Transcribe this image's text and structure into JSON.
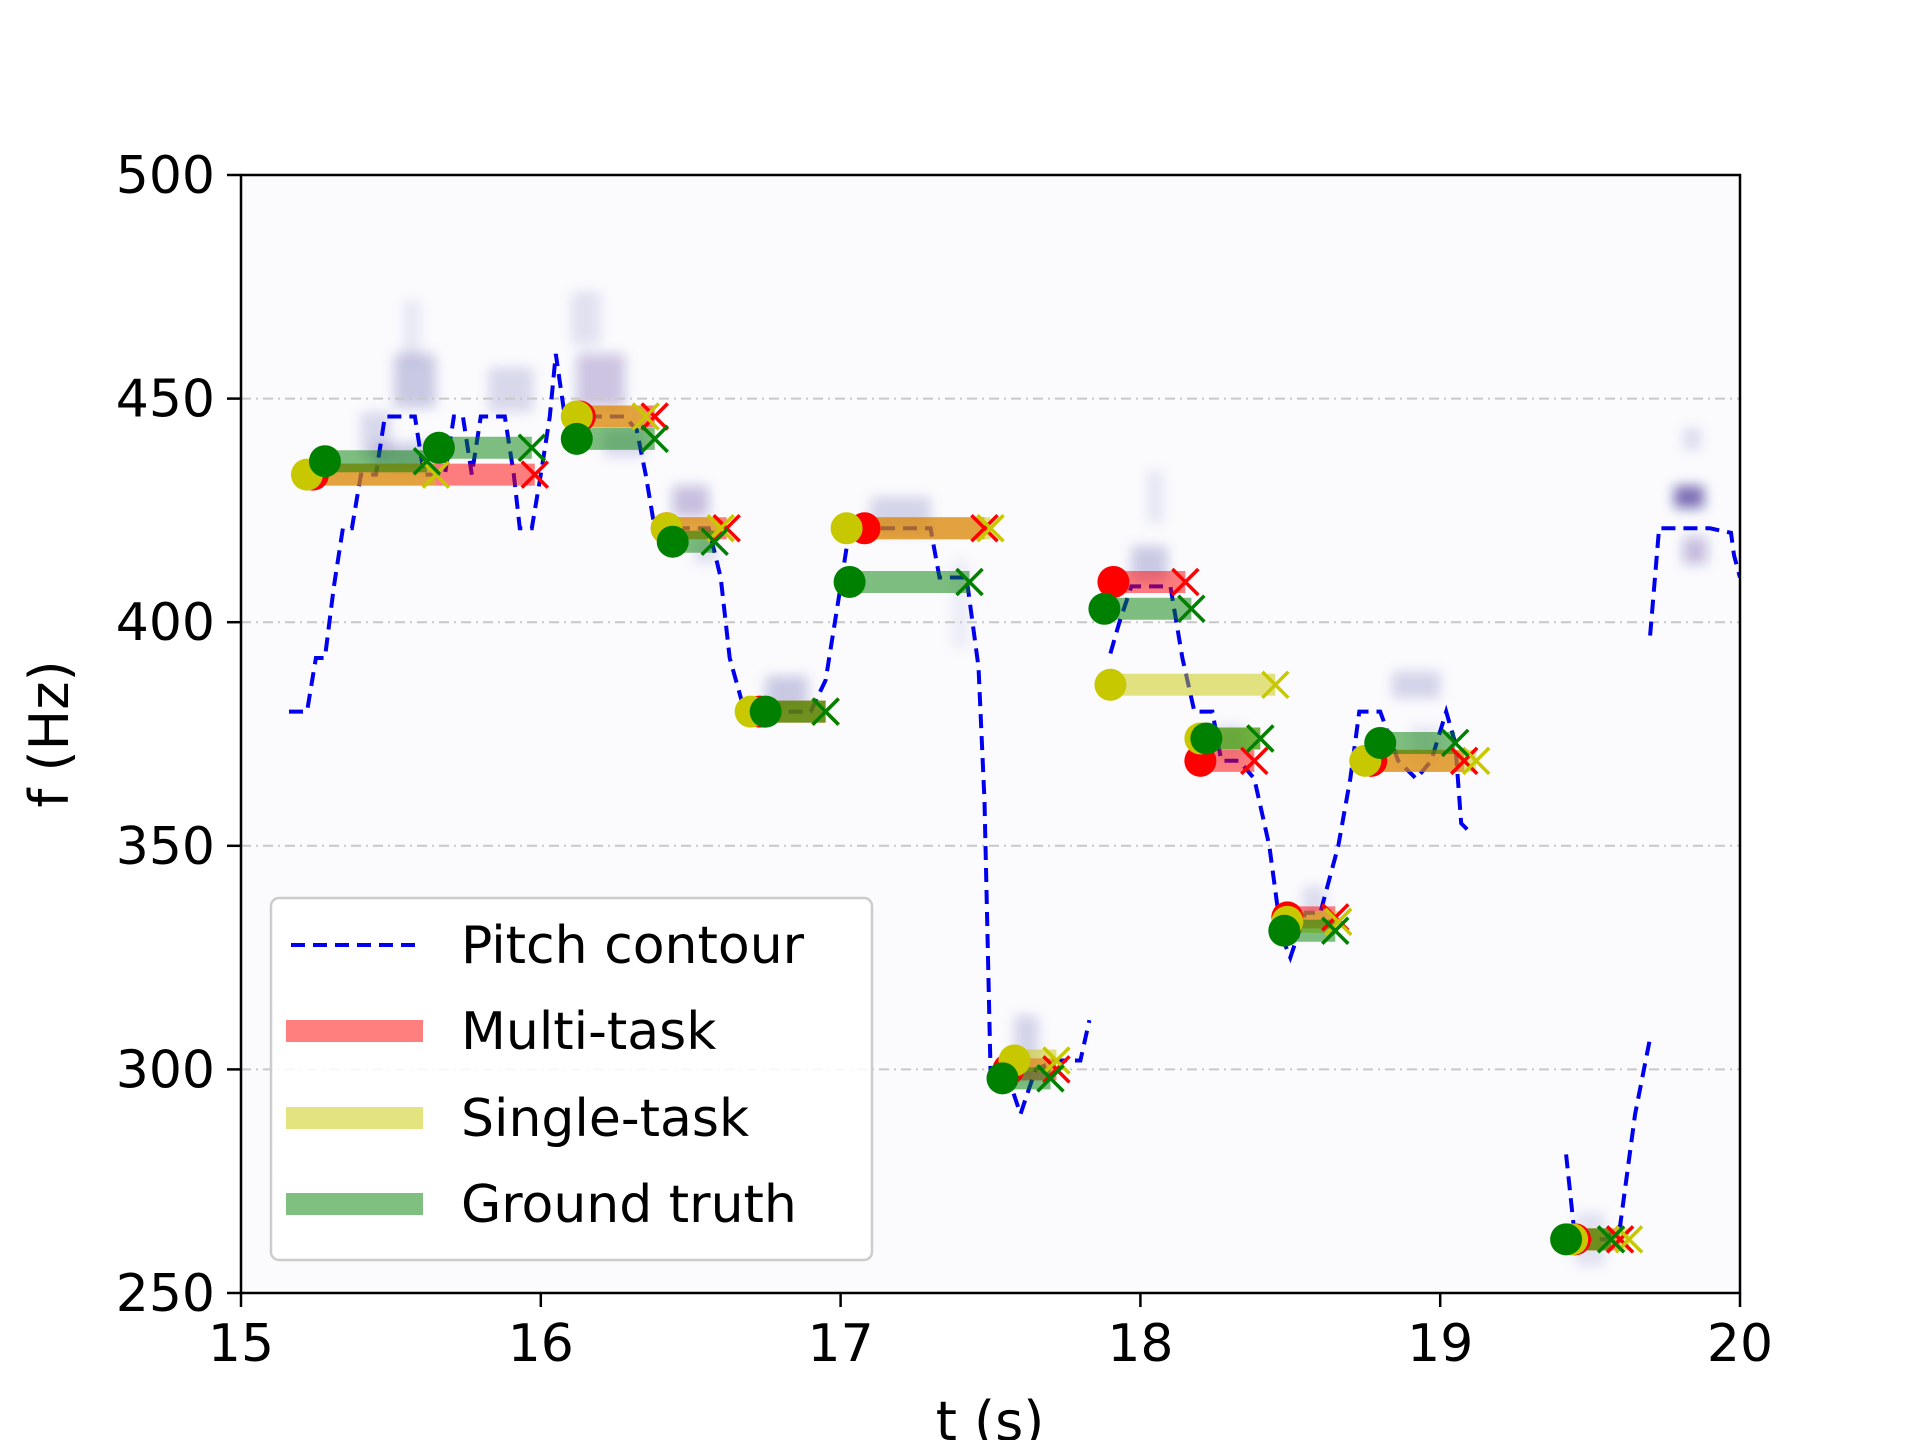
{
  "chart_data": {
    "type": "line",
    "title": "",
    "xlabel": "t (s)",
    "ylabel": "f (Hz)",
    "xlim": [
      15,
      20
    ],
    "ylim": [
      250,
      500
    ],
    "xticks": [
      15,
      16,
      17,
      18,
      19,
      20
    ],
    "yticks": [
      250,
      300,
      350,
      400,
      450,
      500
    ],
    "grid": "horizontal dash-dot",
    "legend_position": "lower-left",
    "colors": {
      "pitch": "#0000ee",
      "multi": "#ff0000",
      "single": "#c8c800",
      "truth": "#008000",
      "spectrogram": "#1a0a7a",
      "grid": "#c8c8c8"
    },
    "legend": [
      "Pitch contour",
      "Multi-task",
      "Single-task",
      "Ground truth"
    ],
    "pitch_contour": [
      [
        [
          15.16,
          380
        ],
        [
          15.22,
          380
        ],
        [
          15.25,
          392
        ],
        [
          15.28,
          392
        ],
        [
          15.31,
          408
        ],
        [
          15.34,
          421
        ],
        [
          15.37,
          421
        ],
        [
          15.4,
          433
        ],
        [
          15.45,
          433
        ],
        [
          15.48,
          446
        ],
        [
          15.58,
          446
        ],
        [
          15.61,
          433
        ],
        [
          15.68,
          433
        ],
        [
          15.71,
          446
        ],
        [
          15.74,
          446
        ],
        [
          15.77,
          433
        ],
        [
          15.8,
          446
        ],
        [
          15.88,
          446
        ],
        [
          15.91,
          433
        ],
        [
          15.93,
          421
        ],
        [
          15.97,
          421
        ],
        [
          16.0,
          433
        ],
        [
          16.03,
          446
        ],
        [
          16.05,
          460
        ],
        [
          16.08,
          446
        ],
        [
          16.15,
          446
        ],
        [
          16.22,
          446
        ],
        [
          16.28,
          446
        ],
        [
          16.32,
          443
        ],
        [
          16.35,
          433
        ],
        [
          16.38,
          421
        ],
        [
          16.48,
          421
        ],
        [
          16.56,
          421
        ],
        [
          16.6,
          410
        ],
        [
          16.63,
          392
        ],
        [
          16.68,
          380
        ],
        [
          16.8,
          380
        ],
        [
          16.9,
          380
        ],
        [
          16.95,
          387
        ],
        [
          17.0,
          408
        ],
        [
          17.03,
          421
        ],
        [
          17.15,
          421
        ],
        [
          17.3,
          421
        ],
        [
          17.33,
          410
        ],
        [
          17.42,
          410
        ],
        [
          17.46,
          390
        ],
        [
          17.48,
          360
        ],
        [
          17.5,
          300
        ],
        [
          17.55,
          300
        ],
        [
          17.6,
          290
        ],
        [
          17.65,
          300
        ],
        [
          17.72,
          302
        ],
        [
          17.8,
          302
        ],
        [
          17.83,
          311
        ]
      ],
      [
        [
          17.9,
          393
        ],
        [
          17.93,
          400
        ],
        [
          17.97,
          408
        ],
        [
          18.1,
          408
        ],
        [
          18.14,
          392
        ],
        [
          18.18,
          380
        ],
        [
          18.24,
          380
        ],
        [
          18.27,
          369
        ],
        [
          18.33,
          369
        ],
        [
          18.38,
          365
        ],
        [
          18.43,
          350
        ],
        [
          18.47,
          330
        ],
        [
          18.5,
          325
        ],
        [
          18.55,
          335
        ],
        [
          18.6,
          335
        ],
        [
          18.66,
          350
        ],
        [
          18.7,
          365
        ],
        [
          18.73,
          380
        ],
        [
          18.8,
          380
        ],
        [
          18.86,
          369
        ],
        [
          18.92,
          365
        ],
        [
          18.97,
          369
        ],
        [
          19.02,
          380
        ],
        [
          19.05,
          373
        ],
        [
          19.07,
          355
        ],
        [
          19.1,
          353
        ]
      ],
      [
        [
          19.42,
          281
        ],
        [
          19.45,
          262
        ],
        [
          19.55,
          262
        ],
        [
          19.6,
          265
        ],
        [
          19.65,
          290
        ],
        [
          19.7,
          307
        ]
      ],
      [
        [
          19.7,
          397
        ],
        [
          19.73,
          421
        ],
        [
          19.9,
          421
        ],
        [
          19.97,
          420
        ],
        [
          19.98,
          415
        ],
        [
          20.0,
          410
        ]
      ]
    ],
    "notes": {
      "multi_task": [
        [
          15.24,
          15.98,
          433
        ],
        [
          16.13,
          16.38,
          446
        ],
        [
          16.42,
          16.62,
          421
        ],
        [
          16.73,
          16.95,
          380
        ],
        [
          17.08,
          17.48,
          421
        ],
        [
          17.56,
          17.72,
          300
        ],
        [
          17.91,
          18.15,
          409
        ],
        [
          18.2,
          18.38,
          369
        ],
        [
          18.49,
          18.65,
          334
        ],
        [
          18.77,
          19.08,
          369
        ],
        [
          19.45,
          19.6,
          262
        ]
      ],
      "single_task": [
        [
          15.22,
          15.65,
          433
        ],
        [
          16.12,
          16.35,
          446
        ],
        [
          16.42,
          16.6,
          421
        ],
        [
          16.7,
          16.95,
          380
        ],
        [
          17.02,
          17.5,
          421
        ],
        [
          17.58,
          17.72,
          302
        ],
        [
          17.9,
          18.45,
          386
        ],
        [
          18.2,
          18.4,
          374
        ],
        [
          18.49,
          18.66,
          333
        ],
        [
          18.75,
          19.12,
          369
        ],
        [
          19.44,
          19.63,
          262
        ]
      ],
      "ground_truth": [
        [
          15.28,
          15.62,
          436
        ],
        [
          15.66,
          15.97,
          439
        ],
        [
          16.12,
          16.38,
          441
        ],
        [
          16.44,
          16.58,
          418
        ],
        [
          16.75,
          16.95,
          380
        ],
        [
          17.03,
          17.43,
          409
        ],
        [
          17.54,
          17.7,
          298
        ],
        [
          17.88,
          18.17,
          403
        ],
        [
          18.22,
          18.4,
          374
        ],
        [
          18.48,
          18.65,
          331
        ],
        [
          18.8,
          19.05,
          373
        ],
        [
          19.42,
          19.57,
          262
        ]
      ]
    },
    "spectrogram_blobs": [
      [
        15.58,
        454,
        0.14,
        12,
        0.2
      ],
      [
        15.45,
        442,
        0.1,
        10,
        0.14
      ],
      [
        15.55,
        437,
        0.22,
        6,
        0.2
      ],
      [
        15.57,
        465,
        0.06,
        14,
        0.08
      ],
      [
        15.9,
        452,
        0.15,
        10,
        0.14
      ],
      [
        16.2,
        454,
        0.16,
        12,
        0.22
      ],
      [
        16.15,
        468,
        0.1,
        12,
        0.1
      ],
      [
        16.28,
        440,
        0.14,
        6,
        0.14
      ],
      [
        16.5,
        427,
        0.12,
        7,
        0.24
      ],
      [
        16.55,
        416,
        0.08,
        6,
        0.1
      ],
      [
        16.82,
        384,
        0.14,
        8,
        0.2
      ],
      [
        17.2,
        424,
        0.2,
        8,
        0.16
      ],
      [
        17.4,
        404,
        0.06,
        20,
        0.06
      ],
      [
        17.62,
        305,
        0.08,
        14,
        0.16
      ],
      [
        18.03,
        413,
        0.12,
        8,
        0.2
      ],
      [
        18.05,
        428,
        0.06,
        12,
        0.08
      ],
      [
        18.3,
        373,
        0.1,
        8,
        0.12
      ],
      [
        18.58,
        337,
        0.08,
        8,
        0.12
      ],
      [
        18.92,
        386,
        0.16,
        6,
        0.16
      ],
      [
        18.95,
        373,
        0.1,
        8,
        0.08
      ],
      [
        19.5,
        262,
        0.1,
        12,
        0.1
      ],
      [
        19.83,
        428,
        0.1,
        5,
        0.55
      ],
      [
        19.85,
        416,
        0.08,
        6,
        0.25
      ],
      [
        19.84,
        441,
        0.06,
        5,
        0.12
      ]
    ]
  }
}
